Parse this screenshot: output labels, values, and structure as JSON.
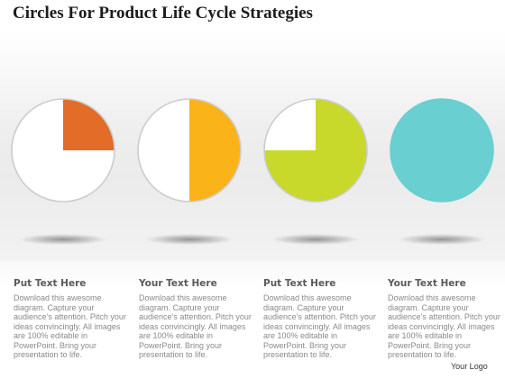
{
  "title": "Circles For Product Life Cycle Strategies",
  "circles": [
    {
      "fill_fraction": 0.25,
      "color": "#e36c28"
    },
    {
      "fill_fraction": 0.5,
      "color": "#fbb31a"
    },
    {
      "fill_fraction": 0.75,
      "color": "#c8d92c"
    },
    {
      "fill_fraction": 1.0,
      "color": "#69cfd0"
    }
  ],
  "ring_color": "#cccccc",
  "columns": [
    {
      "heading": "Put Text Here",
      "body": "Download this awesome diagram. Capture your audience’s attention. Pitch your ideas convincingly. All images are 100% editable in PowerPoint. Bring your presentation to life."
    },
    {
      "heading": "Your Text Here",
      "body": "Download this awesome diagram. Capture your audience’s attention. Pitch your ideas convincingly. All images are 100% editable in PowerPoint. Bring your presentation to life."
    },
    {
      "heading": "Put Text Here",
      "body": "Download this awesome diagram. Capture your audience’s attention. Pitch your ideas convincingly. All images are 100% editable in PowerPoint. Bring your presentation to life."
    },
    {
      "heading": "Your Text Here",
      "body": "Download this awesome diagram. Capture your audience’s attention. Pitch your ideas convincingly. All images are 100% editable in PowerPoint. Bring your presentation to life."
    }
  ],
  "logo": "Your Logo"
}
